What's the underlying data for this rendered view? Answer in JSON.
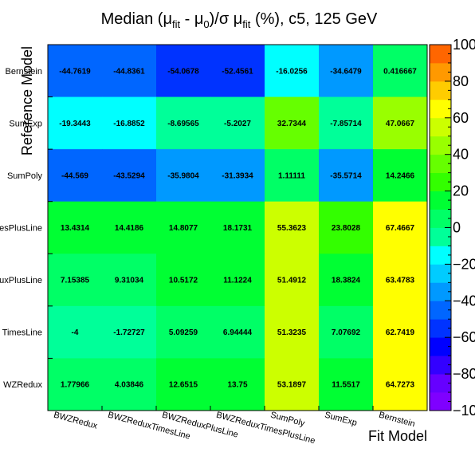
{
  "chart_data": {
    "type": "heatmap",
    "title": {
      "prefix": "Median (μ",
      "sub1": "fit",
      "mid1": " - μ",
      "sub2": "0",
      "mid2": ")/σ μ",
      "sub3": "fit",
      "suffix": " (%), c5, 125 GeV"
    },
    "xlabel": "Fit Model",
    "ylabel": "Reference Model",
    "x_categories": [
      "BWZRedux",
      "BWZReduxTimesLine",
      "BWZReduxPlusLine",
      "BWZReduxTimesPlusLine",
      "SumPoly",
      "SumExp",
      "Bernstein"
    ],
    "y_categories": [
      "Bernstein",
      "SumExp",
      "SumPoly",
      "BWZReduxTimesPlusLine",
      "BWZReduxPlusLine",
      "BWZReduxTimesLine",
      "BWZRedux"
    ],
    "y_tick_labels": [
      "Bernstein",
      "SumExp",
      "SumPoly",
      "esPlusLine",
      "uxPlusLine",
      "TimesLine",
      "WZRedux"
    ],
    "values": [
      [
        -44.7619,
        -44.8361,
        -54.0678,
        -52.4561,
        -16.0256,
        -34.6479,
        0.416667
      ],
      [
        -19.3443,
        -16.8852,
        -8.69565,
        -5.2027,
        32.7344,
        -7.85714,
        47.0667
      ],
      [
        -44.569,
        -43.5294,
        -35.9804,
        -31.3934,
        1.11111,
        -35.5714,
        14.2466
      ],
      [
        13.4314,
        14.4186,
        14.8077,
        18.1731,
        55.3623,
        23.8028,
        67.4667
      ],
      [
        7.15385,
        9.31034,
        10.5172,
        11.1224,
        51.4912,
        18.3824,
        63.4783
      ],
      [
        -4,
        -1.72727,
        5.09259,
        6.94444,
        51.3235,
        7.07692,
        62.7419
      ],
      [
        1.77966,
        4.03846,
        12.6515,
        13.75,
        53.1897,
        11.5517,
        64.7273
      ]
    ],
    "value_labels": [
      [
        "-44.7619",
        "-44.8361",
        "-54.0678",
        "-52.4561",
        "-16.0256",
        "-34.6479",
        "0.416667"
      ],
      [
        "-19.3443",
        "-16.8852",
        "-8.69565",
        "-5.2027",
        "32.7344",
        "-7.85714",
        "47.0667"
      ],
      [
        "-44.569",
        "-43.5294",
        "-35.9804",
        "-31.3934",
        "1.11111",
        "-35.5714",
        "14.2466"
      ],
      [
        "13.4314",
        "14.4186",
        "14.8077",
        "18.1731",
        "55.3623",
        "23.8028",
        "67.4667"
      ],
      [
        "7.15385",
        "9.31034",
        "10.5172",
        "11.1224",
        "51.4912",
        "18.3824",
        "63.4783"
      ],
      [
        "-4",
        "-1.72727",
        "5.09259",
        "6.94444",
        "51.3235",
        "7.07692",
        "62.7419"
      ],
      [
        "1.77966",
        "4.03846",
        "12.6515",
        "13.75",
        "53.1897",
        "11.5517",
        "64.7273"
      ]
    ],
    "zlim": [
      -100,
      100
    ],
    "z_tick_labels": [
      "100",
      "80",
      "60",
      "40",
      "20",
      "0",
      "−20",
      "−40",
      "−60",
      "−80",
      "−100"
    ],
    "palette": [
      "#7f00ff",
      "#6600ff",
      "#3300ff",
      "#0000ff",
      "#0033ff",
      "#0066ff",
      "#0099ff",
      "#00ccff",
      "#00ffff",
      "#00ff99",
      "#00ff66",
      "#00ff33",
      "#33ff00",
      "#66ff00",
      "#99ff00",
      "#ccff00",
      "#ffff00",
      "#ffcc00",
      "#ff9900",
      "#ff6600"
    ],
    "legend": "right colorbar",
    "grid": false
  }
}
